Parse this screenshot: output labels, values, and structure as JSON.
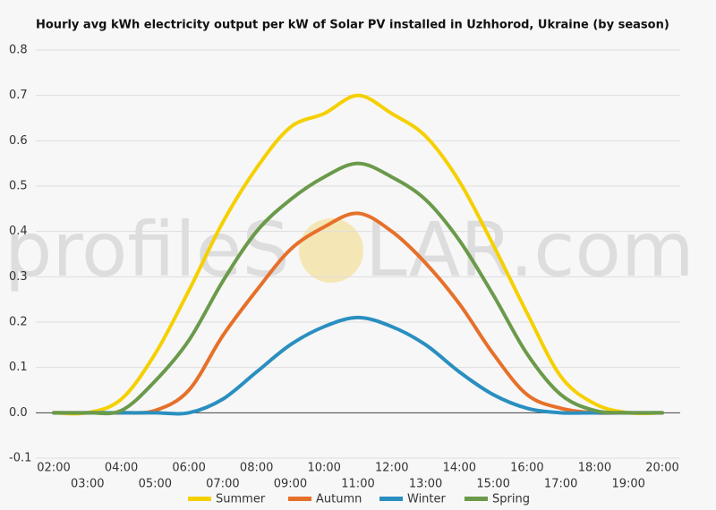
{
  "chart_data": {
    "type": "line",
    "title": "Hourly avg kWh electricity output per kW of Solar PV installed in Uzhhorod, Ukraine (by season)",
    "watermark": [
      "profileS",
      "LAR.com"
    ],
    "categories": [
      "02:00",
      "03:00",
      "04:00",
      "05:00",
      "06:00",
      "07:00",
      "08:00",
      "09:00",
      "10:00",
      "11:00",
      "12:00",
      "13:00",
      "14:00",
      "15:00",
      "16:00",
      "17:00",
      "18:00",
      "19:00",
      "20:00"
    ],
    "series": [
      {
        "name": "Summer",
        "color": "#f5d000",
        "values": [
          0,
          0,
          0.03,
          0.13,
          0.27,
          0.42,
          0.54,
          0.63,
          0.66,
          0.7,
          0.66,
          0.61,
          0.51,
          0.37,
          0.22,
          0.08,
          0.02,
          0,
          0
        ]
      },
      {
        "name": "Autumn",
        "color": "#e6702a",
        "values": [
          0,
          0,
          0,
          0.005,
          0.05,
          0.17,
          0.27,
          0.36,
          0.41,
          0.44,
          0.4,
          0.33,
          0.24,
          0.13,
          0.04,
          0.01,
          0,
          0,
          0
        ]
      },
      {
        "name": "Winter",
        "color": "#2a8fc0",
        "values": [
          0,
          0,
          0,
          0,
          0,
          0.03,
          0.09,
          0.15,
          0.19,
          0.21,
          0.19,
          0.15,
          0.09,
          0.04,
          0.01,
          0,
          0,
          0,
          0
        ]
      },
      {
        "name": "Spring",
        "color": "#6a9a4a",
        "values": [
          0,
          0,
          0.005,
          0.07,
          0.16,
          0.29,
          0.4,
          0.47,
          0.52,
          0.55,
          0.52,
          0.47,
          0.38,
          0.26,
          0.13,
          0.04,
          0.005,
          0,
          0
        ]
      }
    ],
    "ylim": [
      -0.1,
      0.8
    ],
    "yticks": [
      -0.1,
      {
        "value": 0,
        "label": "0.0"
      },
      0.1,
      0.2,
      0.3,
      0.4,
      0.5,
      0.6,
      0.7,
      0.8
    ],
    "grid": true,
    "legend": "bottom"
  }
}
